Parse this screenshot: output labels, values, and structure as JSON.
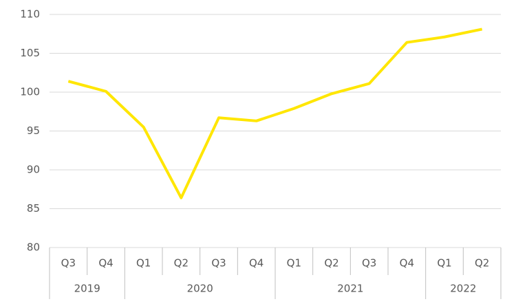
{
  "chart_data": {
    "type": "line",
    "groups": [
      {
        "name": "2019",
        "categories": [
          "Q3",
          "Q4"
        ]
      },
      {
        "name": "2020",
        "categories": [
          "Q1",
          "Q2",
          "Q3",
          "Q4"
        ]
      },
      {
        "name": "2021",
        "categories": [
          "Q1",
          "Q2",
          "Q3",
          "Q4"
        ]
      },
      {
        "name": "2022",
        "categories": [
          "Q1",
          "Q2"
        ]
      }
    ],
    "values": [
      101.4,
      100.1,
      95.5,
      86.4,
      96.7,
      96.3,
      97.9,
      99.8,
      101.1,
      106.4,
      107.1,
      108.1
    ],
    "color": "#ffe600",
    "ylim": [
      80,
      110
    ],
    "yticks": [
      80,
      85,
      90,
      95,
      100,
      105,
      110
    ],
    "grid": true
  }
}
